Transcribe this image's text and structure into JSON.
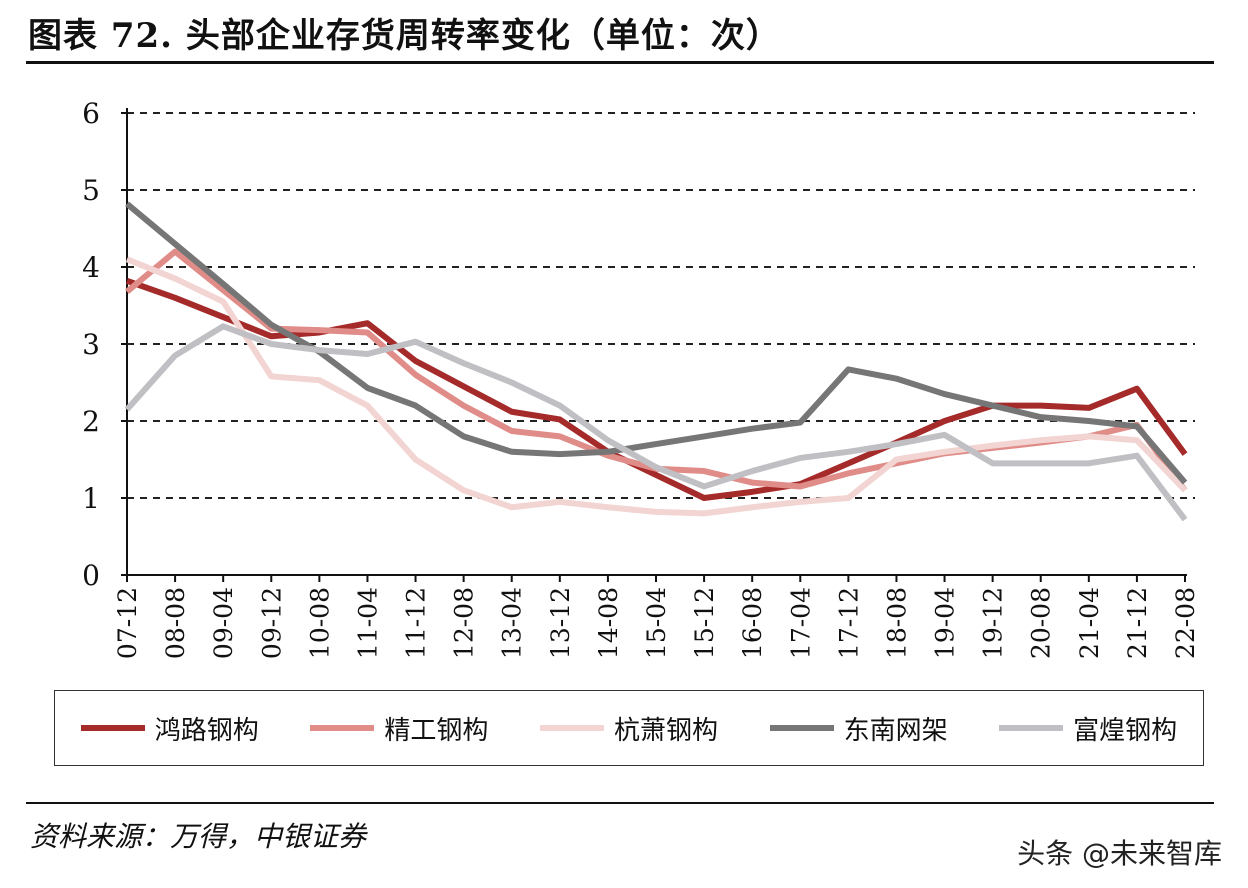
{
  "title": "图表 72. 头部企业存货周转率变化（单位：次）",
  "source": "资料来源：万得，中银证券",
  "watermark": "头条 @未来智库",
  "chart_data": {
    "type": "line",
    "title": "图表 72. 头部企业存货周转率变化（单位：次）",
    "xlabel": "",
    "ylabel": "单位：次",
    "ylim": [
      0,
      6
    ],
    "yticks": [
      "0",
      "1",
      "2",
      "3",
      "4",
      "5",
      "6"
    ],
    "grid": true,
    "legend_position": "bottom",
    "categories": [
      "07-12",
      "08-08",
      "09-04",
      "09-12",
      "10-08",
      "11-04",
      "11-12",
      "12-08",
      "13-04",
      "13-12",
      "14-08",
      "15-04",
      "15-12",
      "16-08",
      "17-04",
      "17-12",
      "18-08",
      "19-04",
      "19-12",
      "20-08",
      "21-04",
      "21-12",
      "22-08"
    ],
    "series": [
      {
        "name": "鸿路钢构",
        "color": "#a52a2a",
        "values": [
          3.82,
          3.6,
          3.35,
          3.1,
          3.15,
          3.27,
          2.78,
          2.45,
          2.12,
          2.02,
          1.6,
          1.3,
          1.0,
          1.08,
          1.18,
          1.45,
          1.72,
          2.0,
          2.2,
          2.2,
          2.17,
          2.42,
          1.57
        ]
      },
      {
        "name": "精工钢构",
        "color": "#e08c88",
        "values": [
          3.68,
          4.2,
          3.7,
          3.2,
          3.18,
          3.15,
          2.6,
          2.2,
          1.87,
          1.8,
          1.55,
          1.38,
          1.35,
          1.2,
          1.15,
          1.32,
          1.45,
          1.58,
          1.65,
          1.72,
          1.8,
          1.95,
          1.1
        ]
      },
      {
        "name": "杭萧钢构",
        "color": "#f2d4d2",
        "values": [
          4.1,
          3.85,
          3.55,
          2.58,
          2.53,
          2.2,
          1.5,
          1.1,
          0.88,
          0.95,
          0.88,
          0.82,
          0.8,
          0.88,
          0.95,
          1.0,
          1.5,
          1.6,
          1.68,
          1.75,
          1.8,
          1.75,
          1.1
        ]
      },
      {
        "name": "东南网架",
        "color": "#767676",
        "values": [
          4.82,
          4.3,
          3.78,
          3.25,
          2.9,
          2.43,
          2.2,
          1.8,
          1.6,
          1.57,
          1.6,
          1.7,
          1.8,
          1.9,
          1.98,
          2.67,
          2.55,
          2.35,
          2.2,
          2.05,
          2.0,
          1.93,
          1.2
        ]
      },
      {
        "name": "富煌钢构",
        "color": "#c0c0c4",
        "values": [
          2.15,
          2.85,
          3.23,
          3.0,
          2.92,
          2.87,
          3.03,
          2.75,
          2.5,
          2.2,
          1.75,
          1.4,
          1.15,
          1.35,
          1.52,
          1.6,
          1.7,
          1.82,
          1.45,
          1.45,
          1.45,
          1.55,
          0.72
        ]
      }
    ]
  }
}
